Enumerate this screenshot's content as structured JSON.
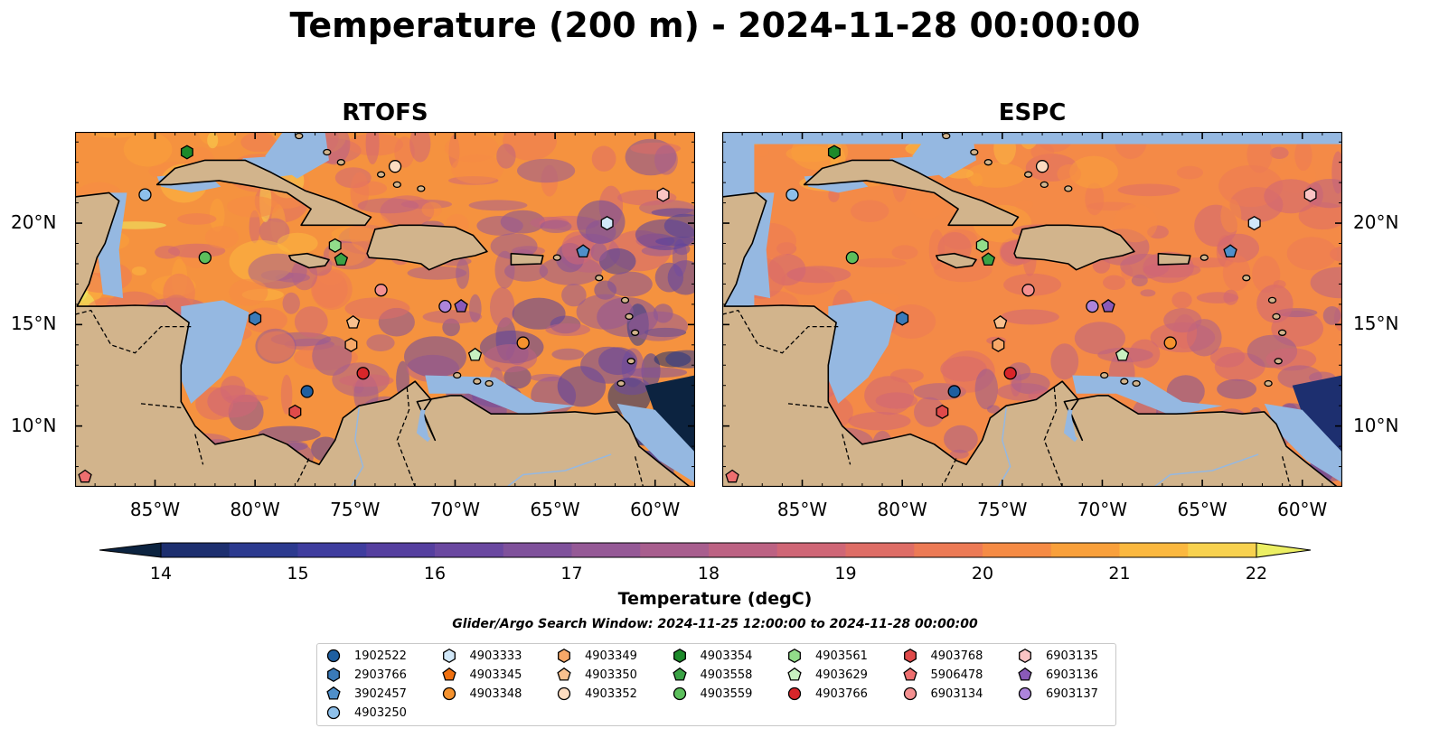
{
  "title": "Temperature (200 m) - 2024-11-28 00:00:00",
  "panels": [
    {
      "title": "RTOFS"
    },
    {
      "title": "ESPC"
    }
  ],
  "axes": {
    "lon_ticks": [
      "85°W",
      "80°W",
      "75°W",
      "70°W",
      "65°W",
      "60°W"
    ],
    "lat_ticks": [
      "20°N",
      "15°N",
      "10°N"
    ],
    "lon_range": [
      -89,
      -58
    ],
    "lat_range": [
      7,
      24.5
    ]
  },
  "colorbar": {
    "label": "Temperature (degC)",
    "ticks": [
      "14",
      "15",
      "16",
      "17",
      "18",
      "19",
      "20",
      "21",
      "22"
    ],
    "min": 14,
    "max": 22,
    "colors": [
      "#0c2340",
      "#1d2f6f",
      "#2c3a8f",
      "#3f3d9e",
      "#553f9f",
      "#6a48a0",
      "#7f519b",
      "#955996",
      "#a85e8e",
      "#bc6283",
      "#cf6676",
      "#de6d66",
      "#ec7a55",
      "#f58b45",
      "#f9a03b",
      "#fbb83f",
      "#f8d24f",
      "#ecef63"
    ]
  },
  "search_window": "Glider/Argo Search Window: 2024-11-25 12:00:00 to 2024-11-28 00:00:00",
  "legend": [
    {
      "id": "1902522",
      "marker": "circle",
      "color": "#1f5fa0"
    },
    {
      "id": "2903766",
      "marker": "hexagon",
      "color": "#3a7ab8"
    },
    {
      "id": "3902457",
      "marker": "pentagon",
      "color": "#4f8fca"
    },
    {
      "id": "4903250",
      "marker": "circle",
      "color": "#8ec0ea"
    },
    {
      "id": "4903333",
      "marker": "hexagon",
      "color": "#d1e8f9"
    },
    {
      "id": "4903345",
      "marker": "pentagon",
      "color": "#f07010"
    },
    {
      "id": "4903348",
      "marker": "circle",
      "color": "#f5922e"
    },
    {
      "id": "4903349",
      "marker": "hexagon",
      "color": "#f7a868"
    },
    {
      "id": "4903350",
      "marker": "pentagon",
      "color": "#f9c08e"
    },
    {
      "id": "4903352",
      "marker": "circle",
      "color": "#fddcc0"
    },
    {
      "id": "4903354",
      "marker": "hexagon",
      "color": "#1d8a2a"
    },
    {
      "id": "4903558",
      "marker": "pentagon",
      "color": "#3aa245"
    },
    {
      "id": "4903559",
      "marker": "circle",
      "color": "#5cbf5c"
    },
    {
      "id": "4903561",
      "marker": "hexagon",
      "color": "#92dd8a"
    },
    {
      "id": "4903629",
      "marker": "pentagon",
      "color": "#c8f0c0"
    },
    {
      "id": "4903766",
      "marker": "circle",
      "color": "#d8262a"
    },
    {
      "id": "4903768",
      "marker": "hexagon",
      "color": "#e04a4a"
    },
    {
      "id": "5906478",
      "marker": "pentagon",
      "color": "#ee6f6f"
    },
    {
      "id": "6903134",
      "marker": "circle",
      "color": "#f49090"
    },
    {
      "id": "6903135",
      "marker": "hexagon",
      "color": "#fbc4c4"
    },
    {
      "id": "6903136",
      "marker": "pentagon",
      "color": "#8a5ab8"
    },
    {
      "id": "6903137",
      "marker": "circle",
      "color": "#ad84dc"
    }
  ],
  "positions": [
    {
      "id": "4903354",
      "lon": -83.4,
      "lat": 23.5
    },
    {
      "id": "4903250",
      "lon": -85.5,
      "lat": 21.4
    },
    {
      "id": "4903352",
      "lon": -73.0,
      "lat": 22.8
    },
    {
      "id": "6903135",
      "lon": -59.6,
      "lat": 21.4
    },
    {
      "id": "4903333",
      "lon": -62.4,
      "lat": 20.0
    },
    {
      "id": "4903559",
      "lon": -82.5,
      "lat": 18.3
    },
    {
      "id": "4903561",
      "lon": -76.0,
      "lat": 18.9
    },
    {
      "id": "4903558",
      "lon": -75.7,
      "lat": 18.2
    },
    {
      "id": "3902457",
      "lon": -63.6,
      "lat": 18.6
    },
    {
      "id": "6903134",
      "lon": -73.7,
      "lat": 16.7
    },
    {
      "id": "6903137",
      "lon": -70.5,
      "lat": 15.9
    },
    {
      "id": "6903136",
      "lon": -69.7,
      "lat": 15.9
    },
    {
      "id": "2903766",
      "lon": -80.0,
      "lat": 15.3
    },
    {
      "id": "4903350",
      "lon": -75.1,
      "lat": 15.1
    },
    {
      "id": "4903349",
      "lon": -75.2,
      "lat": 14.0
    },
    {
      "id": "4903348",
      "lon": -66.6,
      "lat": 14.1
    },
    {
      "id": "4903629",
      "lon": -69.0,
      "lat": 13.5
    },
    {
      "id": "4903766",
      "lon": -74.6,
      "lat": 12.6
    },
    {
      "id": "1902522",
      "lon": -77.4,
      "lat": 11.7
    },
    {
      "id": "4903768",
      "lon": -78.0,
      "lat": 10.7
    },
    {
      "id": "5906478",
      "lon": -88.5,
      "lat": 7.5
    }
  ]
}
